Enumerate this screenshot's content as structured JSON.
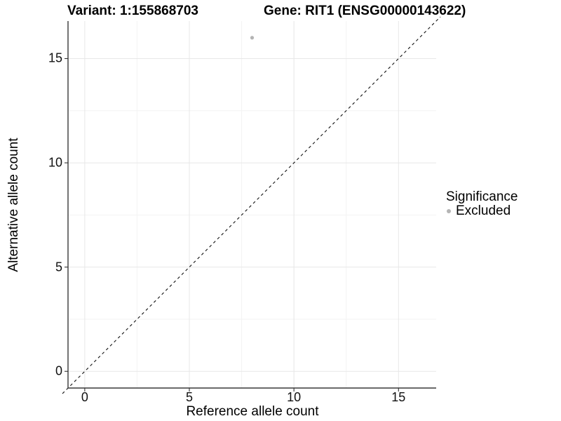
{
  "chart_data": {
    "type": "scatter",
    "title_left": "Variant: 1:155868703",
    "title_right": "Gene: RIT1 (ENSG00000143622)",
    "xlabel": "Reference allele count",
    "ylabel": "Alternative allele count",
    "xlim": [
      -0.8,
      16.8
    ],
    "ylim": [
      -0.8,
      16.8
    ],
    "x_major_ticks": [
      0,
      5,
      10,
      15
    ],
    "y_major_ticks": [
      0,
      5,
      10,
      15
    ],
    "x_minor_gridlines": [
      2.5,
      7.5,
      12.5
    ],
    "y_minor_gridlines": [
      2.5,
      7.5,
      12.5
    ],
    "grid": "major and minor, light gray, on white background",
    "axis_lines": "left and bottom only, dark",
    "reference_line": {
      "kind": "identity y=x",
      "from": [
        -0.8,
        -0.8
      ],
      "to": [
        16.8,
        16.8
      ],
      "style": "dashed",
      "color": "#111111"
    },
    "series": [
      {
        "name": "Excluded",
        "marker": "circle",
        "color": "#b4b4b4",
        "points": [
          {
            "x": 8,
            "y": 16
          }
        ]
      }
    ],
    "legend": {
      "title": "Significance",
      "position": "right",
      "items": [
        {
          "label": "Excluded",
          "color": "#b4b4b4"
        }
      ]
    }
  },
  "colors": {
    "background": "#ffffff",
    "grid_major": "#e7e7e7",
    "grid_minor": "#f3f3f3",
    "axis_line": "#383838",
    "tick_mark": "#333333",
    "tick_text": "#111111",
    "point": "#b4b4b4"
  }
}
